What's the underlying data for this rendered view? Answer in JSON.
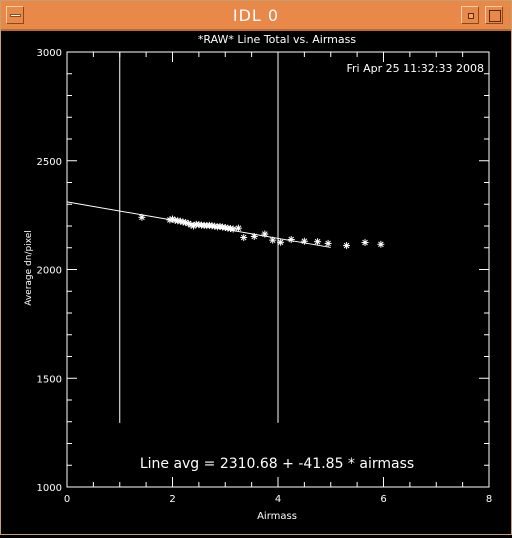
{
  "window": {
    "title": "IDL 0"
  },
  "plot": {
    "timestamp": "Fri Apr 25 11:32:33 2008",
    "fit_text": "Line avg = 2310.68 + -41.85 * airmass"
  },
  "colors": {
    "titlebar": "#e8894a",
    "background": "#000000",
    "foreground": "#ffffff"
  },
  "chart_data": {
    "type": "scatter",
    "title": "*RAW* Line Total vs. Airmass",
    "xlabel": "Airmass",
    "ylabel": "Average dn/pixel",
    "xlim": [
      0,
      8
    ],
    "ylim": [
      1000,
      3000
    ],
    "x_ticks": [
      "0",
      "2",
      "4",
      "6",
      "8"
    ],
    "y_ticks": [
      "1000",
      "1500",
      "2000",
      "2500",
      "3000"
    ],
    "grid": false,
    "marker": "asterisk",
    "points": [
      [
        1.42,
        2240
      ],
      [
        1.95,
        2228
      ],
      [
        2.0,
        2232
      ],
      [
        2.05,
        2226
      ],
      [
        2.1,
        2224
      ],
      [
        2.15,
        2222
      ],
      [
        2.2,
        2218
      ],
      [
        2.25,
        2216
      ],
      [
        2.3,
        2212
      ],
      [
        2.35,
        2205
      ],
      [
        2.4,
        2200
      ],
      [
        2.45,
        2208
      ],
      [
        2.5,
        2206
      ],
      [
        2.55,
        2204
      ],
      [
        2.6,
        2203
      ],
      [
        2.65,
        2202
      ],
      [
        2.7,
        2203
      ],
      [
        2.75,
        2201
      ],
      [
        2.8,
        2199
      ],
      [
        2.85,
        2196
      ],
      [
        2.9,
        2198
      ],
      [
        2.95,
        2195
      ],
      [
        3.0,
        2193
      ],
      [
        3.05,
        2190
      ],
      [
        3.1,
        2188
      ],
      [
        3.15,
        2186
      ],
      [
        3.25,
        2190
      ],
      [
        3.35,
        2147
      ],
      [
        3.55,
        2152
      ],
      [
        3.75,
        2163
      ],
      [
        3.9,
        2135
      ],
      [
        4.05,
        2125
      ],
      [
        4.25,
        2138
      ],
      [
        4.5,
        2130
      ],
      [
        4.75,
        2128
      ],
      [
        4.95,
        2120
      ],
      [
        5.3,
        2110
      ],
      [
        5.65,
        2124
      ],
      [
        5.95,
        2116
      ]
    ],
    "fit_line": {
      "intercept": 2310.68,
      "slope": -41.85,
      "x_range": [
        0,
        5
      ]
    },
    "vertical_lines": [
      {
        "x": 1,
        "y_range": [
          1295,
          3000
        ]
      },
      {
        "x": 4,
        "y_range": [
          1295,
          3000
        ]
      }
    ]
  }
}
